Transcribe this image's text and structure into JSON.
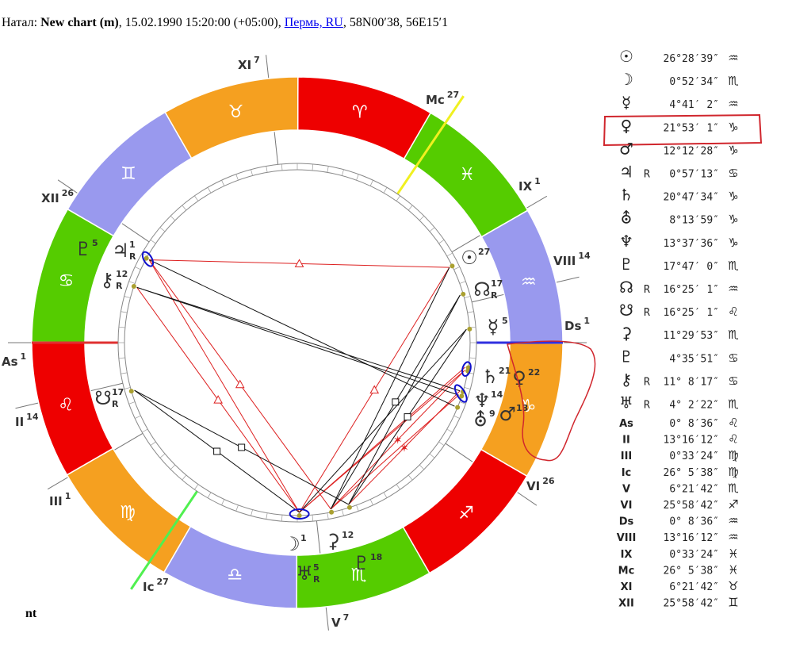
{
  "header": {
    "label": "Натал:",
    "chart_name": "New chart (m)",
    "datetime": ", 15.02.1990 15:20:00 (+05:00), ",
    "place": "Пермь, RU",
    "coords": ", 58N00′38, 56E15′1"
  },
  "wheel": {
    "signs": [
      "♈",
      "♉",
      "♊",
      "♋",
      "♌",
      "♍",
      "♎",
      "♏",
      "♐",
      "♑",
      "♒",
      "♓"
    ],
    "houses": [
      {
        "label": "As",
        "degree": "1"
      },
      {
        "label": "II",
        "degree": "14"
      },
      {
        "label": "III",
        "degree": "1"
      },
      {
        "label": "Ic",
        "degree": "27"
      },
      {
        "label": "V",
        "degree": "7"
      },
      {
        "label": "VI",
        "degree": "26"
      },
      {
        "label": "Ds",
        "degree": "1"
      },
      {
        "label": "VIII",
        "degree": "14"
      },
      {
        "label": "IX",
        "degree": "1"
      },
      {
        "label": "Mc",
        "degree": "27"
      },
      {
        "label": "XI",
        "degree": "7"
      },
      {
        "label": "XII",
        "degree": "26"
      }
    ],
    "planets": [
      {
        "glyph": "☉",
        "degree": "27"
      },
      {
        "glyph": "☊",
        "degree": "17",
        "retro": "R"
      },
      {
        "glyph": "☿",
        "degree": "5"
      },
      {
        "glyph": "♄",
        "degree": "21"
      },
      {
        "glyph": "♀",
        "degree": "22"
      },
      {
        "glyph": "♆",
        "degree": "14"
      },
      {
        "glyph": "⛢",
        "degree": "9"
      },
      {
        "glyph": "♂",
        "degree": "13"
      },
      {
        "glyph": "☽",
        "degree": "1"
      },
      {
        "glyph": "⚳",
        "degree": "12"
      },
      {
        "glyph": "♇",
        "degree": "18"
      },
      {
        "glyph": "♅",
        "degree": "5",
        "retro": "R"
      },
      {
        "glyph": "♇",
        "degree": "5"
      },
      {
        "glyph": "♃",
        "degree": "1",
        "retro": "R"
      },
      {
        "glyph": "⚷",
        "degree": "12",
        "retro": "R"
      },
      {
        "glyph": "☋",
        "degree": "17",
        "retro": "R"
      }
    ]
  },
  "table": {
    "rows": [
      {
        "symbol": "☉",
        "degree": "26°28′39″",
        "sign": "♒"
      },
      {
        "symbol": "☽",
        "degree": "0°52′34″",
        "sign": "♏"
      },
      {
        "symbol": "☿",
        "degree": "4°41′ 2″",
        "sign": "♒"
      },
      {
        "symbol": "♀",
        "degree": "21°53′ 1″",
        "sign": "♑"
      },
      {
        "symbol": "♂",
        "degree": "12°12′28″",
        "sign": "♑"
      },
      {
        "symbol": "♃",
        "retro": "R",
        "degree": "0°57′13″",
        "sign": "♋"
      },
      {
        "symbol": "♄",
        "degree": "20°47′34″",
        "sign": "♑"
      },
      {
        "symbol": "⛢",
        "degree": "8°13′59″",
        "sign": "♑"
      },
      {
        "symbol": "♆",
        "degree": "13°37′36″",
        "sign": "♑"
      },
      {
        "symbol": "♇",
        "degree": "17°47′ 0″",
        "sign": "♏"
      },
      {
        "symbol": "☊",
        "retro": "R",
        "degree": "16°25′ 1″",
        "sign": "♒"
      },
      {
        "symbol": "☋",
        "retro": "R",
        "degree": "16°25′ 1″",
        "sign": "♌"
      },
      {
        "symbol": "⚳",
        "degree": "11°29′53″",
        "sign": "♏"
      },
      {
        "symbol": "♇",
        "degree": "4°35′51″",
        "sign": "♋"
      },
      {
        "symbol": "⚷",
        "retro": "R",
        "degree": "11° 8′17″",
        "sign": "♋"
      },
      {
        "symbol": "♅",
        "retro": "R",
        "degree": "4° 2′22″",
        "sign": "♏"
      },
      {
        "symbol": "As",
        "degree": "0° 8′36″",
        "sign": "♌"
      },
      {
        "symbol": "II",
        "degree": "13°16′12″",
        "sign": "♌"
      },
      {
        "symbol": "III",
        "degree": "0°33′24″",
        "sign": "♍"
      },
      {
        "symbol": "Ic",
        "degree": "26° 5′38″",
        "sign": "♍"
      },
      {
        "symbol": "V",
        "degree": "6°21′42″",
        "sign": "♏"
      },
      {
        "symbol": "VI",
        "degree": "25°58′42″",
        "sign": "♐"
      },
      {
        "symbol": "Ds",
        "degree": "0° 8′36″",
        "sign": "♒"
      },
      {
        "symbol": "VIII",
        "degree": "13°16′12″",
        "sign": "♒"
      },
      {
        "symbol": "IX",
        "degree": "0°33′24″",
        "sign": "♓"
      },
      {
        "symbol": "Mc",
        "degree": "26° 5′38″",
        "sign": "♓"
      },
      {
        "symbol": "XI",
        "degree": "6°21′42″",
        "sign": "♉"
      },
      {
        "symbol": "XII",
        "degree": "25°58′42″",
        "sign": "♊"
      }
    ]
  },
  "footer": "nt"
}
